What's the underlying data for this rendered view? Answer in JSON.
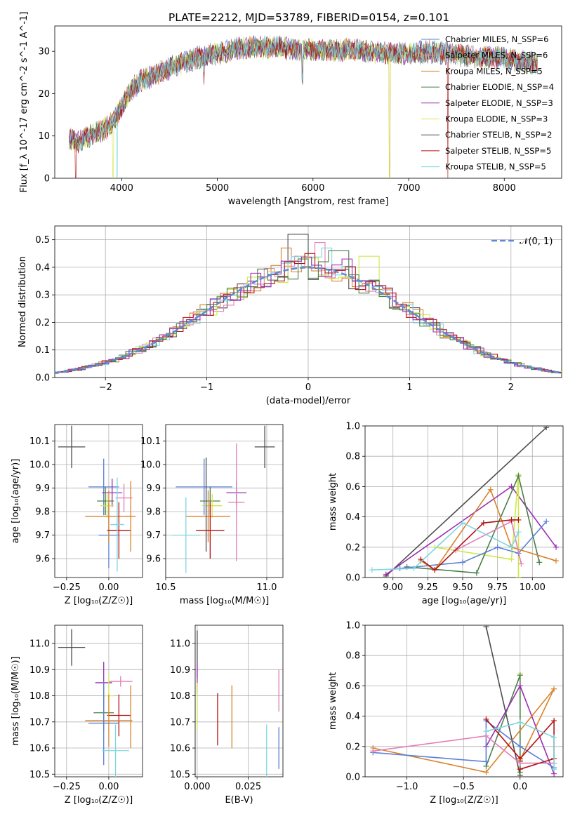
{
  "title": "PLATE=2212, MJD=53789, FIBERID=0154, z=0.101",
  "colors": {
    "Chabrier MILES": "#5b7fd6",
    "Salpeter MILES": "#e37fb8",
    "Kroupa MILES": "#d9822b",
    "Chabrier ELODIE": "#4a7f4a",
    "Salpeter ELODIE": "#9b2fb0",
    "Kroupa ELODIE": "#cfe84a",
    "Chabrier STELIB": "#4d4d4d",
    "Salpeter STELIB": "#b31111",
    "Kroupa STELIB": "#7fd6df"
  },
  "chart_data": [
    {
      "type": "line",
      "title": "PLATE=2212, MJD=53789, FIBERID=0154, z=0.101",
      "xlabel": "wavelength [Angstrom, rest frame]",
      "ylabel": "Flux [f_λ 10^-17 erg cm^-2 s^-1 A^-1]",
      "xlim": [
        3300,
        8600
      ],
      "ylim": [
        0,
        36
      ],
      "xticks": [
        "4000",
        "5000",
        "6000",
        "7000",
        "8000"
      ],
      "yticks": [
        "0",
        "10",
        "20",
        "30"
      ],
      "legend_placement": "top-right",
      "continuum": {
        "x": [
          3450,
          3550,
          3700,
          3800,
          3900,
          4000,
          4100,
          4200,
          4400,
          4600,
          4800,
          5000,
          5200,
          5400,
          5600,
          5800,
          6000,
          6200,
          6400,
          6600,
          6800,
          7000,
          7200,
          7400,
          7600,
          7800,
          8000,
          8200,
          8350
        ],
        "y": [
          9.5,
          8.5,
          10.5,
          11.5,
          13,
          17,
          21,
          23,
          25,
          27,
          28.5,
          29.5,
          30.5,
          31,
          31,
          30.5,
          30.5,
          30,
          30.5,
          30,
          29.5,
          29.5,
          30,
          29.5,
          29,
          28.5,
          28.5,
          27.5,
          27
        ]
      },
      "series": [
        {
          "name": "Chabrier MILES, N_SSP=6"
        },
        {
          "name": "Salpeter MILES, N_SSP=6"
        },
        {
          "name": "Kroupa MILES, N_SSP=5"
        },
        {
          "name": "Chabrier ELODIE, N_SSP=4"
        },
        {
          "name": "Salpeter ELODIE, N_SSP=3"
        },
        {
          "name": "Kroupa ELODIE, N_SSP=3"
        },
        {
          "name": "Chabrier STELIB, N_SSP=2"
        },
        {
          "name": "Salpeter STELIB, N_SSP=5"
        },
        {
          "name": "Kroupa STELIB, N_SSP=5"
        }
      ]
    },
    {
      "type": "bar",
      "xlabel": "(data-model)/error",
      "ylabel": "Normed distribution",
      "xlim": [
        -2.5,
        2.5
      ],
      "ylim": [
        0,
        0.55
      ],
      "xticks": [
        "−2",
        "−1",
        "0",
        "1",
        "2"
      ],
      "yticks": [
        "0.0",
        "0.1",
        "0.2",
        "0.3",
        "0.4",
        "0.5"
      ],
      "legend": "𝒩(0, 1)",
      "legend_placement": "top-right",
      "bin_width": 0.1,
      "histograms": [
        {
          "color_key": "Chabrier STELIB",
          "peak": 0.52,
          "x0": -0.15
        },
        {
          "color_key": "Kroupa MILES",
          "peak": 0.47,
          "x0": -0.25
        },
        {
          "color_key": "Salpeter MILES",
          "peak": 0.49,
          "x0": 0.05
        },
        {
          "color_key": "Kroupa ELODIE",
          "peak": 0.44,
          "x0": 0.55
        },
        {
          "color_key": "Kroupa STELIB",
          "peak": 0.47,
          "x0": 0.15
        },
        {
          "color_key": "Salpeter STELIB",
          "peak": 0.45,
          "x0": -0.05
        },
        {
          "color_key": "Chabrier ELODIE",
          "peak": 0.46,
          "x0": 0.25
        },
        {
          "color_key": "Salpeter ELODIE",
          "peak": 0.43,
          "x0": 0.35
        }
      ]
    },
    {
      "type": "scatter",
      "xlabel": "Z [log₁₀(Z/Z☉)]",
      "ylabel": "age  [log₁₀(age/yr)]",
      "xlim": [
        -0.32,
        0.2
      ],
      "ylim": [
        9.52,
        10.17
      ],
      "xticks": [
        "−0.25",
        "0.00"
      ],
      "yticks": [
        "9.6",
        "9.7",
        "9.8",
        "9.9",
        "10.0",
        "10.1"
      ],
      "points": [
        {
          "k": "Chabrier STELIB",
          "x": -0.22,
          "xe": 0.08,
          "y": 10.075,
          "ye": 0.09
        },
        {
          "k": "Chabrier MILES",
          "x": -0.03,
          "xe": 0.09,
          "y": 9.905,
          "ye": 0.12
        },
        {
          "k": "Chabrier MILES",
          "x": 0.0,
          "xe": 0.06,
          "y": 9.7,
          "ye": 0.14
        },
        {
          "k": "Salpeter ELODIE",
          "x": 0.02,
          "xe": 0.06,
          "y": 9.88,
          "ye": 0.06
        },
        {
          "k": "Chabrier ELODIE",
          "x": -0.02,
          "xe": 0.05,
          "y": 9.845,
          "ye": 0.06
        },
        {
          "k": "Kroupa ELODIE",
          "x": -0.01,
          "xe": 0.04,
          "y": 9.825,
          "ye": 0.05
        },
        {
          "k": "Kroupa MILES",
          "x": 0.0,
          "xe": 0.14,
          "y": 9.78,
          "ye": 0.11
        },
        {
          "k": "Salpeter MILES",
          "x": 0.09,
          "xe": 0.05,
          "y": 9.858,
          "ye": 0.06
        },
        {
          "k": "Salpeter STELIB",
          "x": 0.06,
          "xe": 0.07,
          "y": 9.72,
          "ye": 0.12
        },
        {
          "k": "Kroupa STELIB",
          "x": 0.05,
          "xe": 0.04,
          "y": 9.745,
          "ye": 0.2
        },
        {
          "k": "Kroupa MILES",
          "x": 0.13,
          "xe": 0.03,
          "y": 9.78,
          "ye": 0.15
        }
      ]
    },
    {
      "type": "scatter",
      "xlabel": "mass [log₁₀(M/M☉)]",
      "ylabel": "",
      "xlim": [
        10.5,
        11.08
      ],
      "ylim": [
        9.52,
        10.17
      ],
      "xticks": [
        "10.5",
        "11.0"
      ],
      "yticks": [
        "9.6",
        "9.7",
        "9.8",
        "9.9",
        "10.0",
        "10.1"
      ],
      "points": [
        {
          "k": "Chabrier STELIB",
          "x": 10.99,
          "xe": 0.05,
          "y": 10.075,
          "ye": 0.09
        },
        {
          "k": "Chabrier MILES",
          "x": 10.69,
          "xe": 0.14,
          "y": 9.905,
          "ye": 0.12
        },
        {
          "k": "Salpeter ELODIE",
          "x": 10.85,
          "xe": 0.05,
          "y": 9.88,
          "ye": 0.05
        },
        {
          "k": "Chabrier ELODIE",
          "x": 10.72,
          "xe": 0.05,
          "y": 9.845,
          "ye": 0.06
        },
        {
          "k": "Kroupa ELODIE",
          "x": 10.73,
          "xe": 0.05,
          "y": 9.825,
          "ye": 0.05
        },
        {
          "k": "Kroupa MILES",
          "x": 10.71,
          "xe": 0.11,
          "y": 9.78,
          "ye": 0.11
        },
        {
          "k": "Salpeter MILES",
          "x": 10.85,
          "xe": 0.04,
          "y": 9.84,
          "ye": 0.25
        },
        {
          "k": "Salpeter STELIB",
          "x": 10.72,
          "xe": 0.07,
          "y": 9.72,
          "ye": 0.12
        },
        {
          "k": "Kroupa STELIB",
          "x": 10.6,
          "xe": 0.07,
          "y": 9.7,
          "ye": 0.16
        },
        {
          "k": "Chabrier STELIB",
          "x": 10.7,
          "xe": 0.0,
          "y": 9.83,
          "ye": 0.2
        }
      ]
    },
    {
      "type": "line",
      "xlabel": "age  [log₁₀(age/yr)]",
      "ylabel": "mass weight",
      "xlim": [
        8.8,
        10.22
      ],
      "ylim": [
        0,
        1
      ],
      "xticks": [
        "9.00",
        "9.25",
        "9.50",
        "9.75",
        "10.00"
      ],
      "yticks": [
        "0.0",
        "0.2",
        "0.4",
        "0.6",
        "0.8",
        "1.0"
      ],
      "series": [
        {
          "k": "Chabrier STELIB",
          "x": [
            8.95,
            10.1
          ],
          "y": [
            0.01,
            0.99
          ]
        },
        {
          "k": "Salpeter ELODIE",
          "x": [
            8.95,
            9.85,
            10.17
          ],
          "y": [
            0.02,
            0.6,
            0.2
          ]
        },
        {
          "k": "Kroupa ELODIE",
          "x": [
            9.3,
            9.85,
            9.9,
            9.9
          ],
          "y": [
            0.2,
            0.12,
            0.68,
            0.0
          ]
        },
        {
          "k": "Chabrier ELODIE",
          "x": [
            9.1,
            9.6,
            9.9,
            10.05
          ],
          "y": [
            0.07,
            0.03,
            0.67,
            0.1
          ]
        },
        {
          "k": "Chabrier MILES",
          "x": [
            9.05,
            9.5,
            9.75,
            9.9,
            10.1
          ],
          "y": [
            0.06,
            0.1,
            0.2,
            0.16,
            0.37
          ]
        },
        {
          "k": "Kroupa MILES",
          "x": [
            9.2,
            9.3,
            9.7,
            9.85,
            10.17
          ],
          "y": [
            0.11,
            0.05,
            0.58,
            0.2,
            0.11
          ]
        },
        {
          "k": "Salpeter MILES",
          "x": [
            9.45,
            9.85,
            9.92
          ],
          "y": [
            0.18,
            0.37,
            0.09
          ]
        },
        {
          "k": "Salpeter STELIB",
          "x": [
            9.2,
            9.3,
            9.65,
            9.85,
            9.9
          ],
          "y": [
            0.12,
            0.05,
            0.36,
            0.38,
            0.38
          ]
        },
        {
          "k": "Kroupa STELIB",
          "x": [
            8.85,
            9.15,
            9.5,
            9.85,
            9.9
          ],
          "y": [
            0.05,
            0.06,
            0.36,
            0.2,
            0.3
          ]
        }
      ]
    },
    {
      "type": "scatter",
      "xlabel": "Z [log₁₀(Z/Z☉)]",
      "ylabel": "mass [log₁₀(M/M☉)]",
      "xlim": [
        -0.32,
        0.2
      ],
      "ylim": [
        10.49,
        11.07
      ],
      "xticks": [
        "−0.25",
        "0.00"
      ],
      "yticks": [
        "10.5",
        "10.6",
        "10.7",
        "10.8",
        "10.9",
        "11.0"
      ],
      "points": [
        {
          "k": "Chabrier STELIB",
          "x": -0.22,
          "xe": 0.08,
          "y": 10.985,
          "ye": 0.07
        },
        {
          "k": "Salpeter ELODIE",
          "x": -0.03,
          "xe": 0.05,
          "y": 10.85,
          "ye": 0.08
        },
        {
          "k": "Salpeter MILES",
          "x": 0.07,
          "xe": 0.07,
          "y": 10.855,
          "ye": 0.02
        },
        {
          "k": "Kroupa ELODIE",
          "x": 0.0,
          "xe": 0.03,
          "y": 10.8,
          "ye": 0.08
        },
        {
          "k": "Chabrier ELODIE",
          "x": -0.03,
          "xe": 0.06,
          "y": 10.735,
          "ye": 0.07
        },
        {
          "k": "Salpeter STELIB",
          "x": 0.06,
          "xe": 0.07,
          "y": 10.725,
          "ye": 0.08
        },
        {
          "k": "Kroupa MILES",
          "x": 0.0,
          "xe": 0.14,
          "y": 10.705,
          "ye": 0.1
        },
        {
          "k": "Chabrier MILES",
          "x": -0.03,
          "xe": 0.09,
          "y": 10.695,
          "ye": 0.16
        },
        {
          "k": "Kroupa STELIB",
          "x": 0.04,
          "xe": 0.08,
          "y": 10.59,
          "ye": 0.1
        },
        {
          "k": "Kroupa MILES",
          "x": 0.13,
          "xe": 0.0,
          "y": 10.72,
          "ye": 0.12
        }
      ]
    },
    {
      "type": "scatter",
      "xlabel": "E(B-V)",
      "ylabel": "",
      "xlim": [
        -0.001,
        0.042
      ],
      "ylim": [
        10.49,
        11.07
      ],
      "xticks": [
        "0.000",
        "0.025"
      ],
      "yticks": [
        "10.5",
        "10.6",
        "10.7",
        "10.8",
        "10.9",
        "11.0"
      ],
      "points": [
        {
          "k": "Chabrier STELIB",
          "x": 0.0,
          "y": 10.96,
          "ye": 0.09
        },
        {
          "k": "Salpeter ELODIE",
          "x": 0.0,
          "y": 10.87,
          "ye": 0.06
        },
        {
          "k": "Kroupa ELODIE",
          "x": 0.0,
          "y": 10.76,
          "ye": 0.09
        },
        {
          "k": "Salpeter STELIB",
          "x": 0.01,
          "y": 10.71,
          "ye": 0.1
        },
        {
          "k": "Kroupa MILES",
          "x": 0.017,
          "y": 10.72,
          "ye": 0.12
        },
        {
          "k": "Kroupa STELIB",
          "x": 0.034,
          "y": 10.59,
          "ye": 0.1
        },
        {
          "k": "Salpeter MILES",
          "x": 0.04,
          "y": 10.82,
          "ye": 0.08
        },
        {
          "k": "Chabrier MILES",
          "x": 0.04,
          "y": 10.6,
          "ye": 0.08
        }
      ]
    },
    {
      "type": "line",
      "xlabel": "Z [log₁₀(Z/Z☉)]",
      "ylabel": "mass weight",
      "xlim": [
        -1.37,
        0.38
      ],
      "ylim": [
        0,
        1
      ],
      "xticks": [
        "−1.0",
        "−0.5",
        "0.0"
      ],
      "yticks": [
        "0.0",
        "0.2",
        "0.4",
        "0.6",
        "0.8",
        "1.0"
      ],
      "series": [
        {
          "k": "Chabrier STELIB",
          "x": [
            -0.3,
            0.0
          ],
          "y": [
            0.99,
            0.01
          ]
        },
        {
          "k": "Kroupa ELODIE",
          "x": [
            0.0,
            0.0,
            0.0
          ],
          "y": [
            0.68,
            0.2,
            0.12
          ]
        },
        {
          "k": "Chabrier ELODIE",
          "x": [
            -0.3,
            0.0,
            0.0,
            0.0
          ],
          "y": [
            0.07,
            0.67,
            0.1,
            0.03
          ]
        },
        {
          "k": "Salpeter ELODIE",
          "x": [
            -0.3,
            0.0,
            0.3
          ],
          "y": [
            0.2,
            0.6,
            0.02
          ]
        },
        {
          "k": "Kroupa MILES",
          "x": [
            -1.3,
            -0.3,
            0.3,
            0.0
          ],
          "y": [
            0.19,
            0.03,
            0.58,
            0.11
          ]
        },
        {
          "k": "Chabrier MILES",
          "x": [
            -1.3,
            -0.3,
            -0.3,
            0.0,
            0.3
          ],
          "y": [
            0.16,
            0.1,
            0.37,
            0.2,
            0.06
          ]
        },
        {
          "k": "Salpeter MILES",
          "x": [
            -1.3,
            -0.3,
            0.0,
            0.3
          ],
          "y": [
            0.17,
            0.27,
            0.09,
            0.09
          ]
        },
        {
          "k": "Salpeter STELIB",
          "x": [
            -0.3,
            0.0,
            0.3,
            0.3,
            0.0
          ],
          "y": [
            0.38,
            0.12,
            0.37,
            0.12,
            0.05
          ]
        },
        {
          "k": "Kroupa STELIB",
          "x": [
            -0.3,
            0.0,
            0.3,
            0.3
          ],
          "y": [
            0.3,
            0.36,
            0.26,
            0.05
          ]
        }
      ]
    }
  ]
}
